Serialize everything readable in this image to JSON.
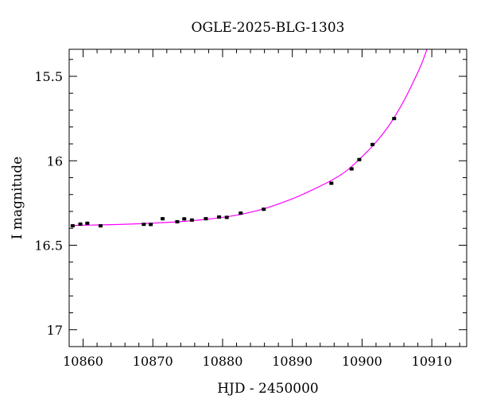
{
  "chart_data": {
    "type": "scatter",
    "title": "OGLE-2025-BLG-1303",
    "xlabel": "HJD - 2450000",
    "ylabel": "I magnitude",
    "xlim": [
      10858,
      10915
    ],
    "ylim": [
      17.1,
      15.34
    ],
    "y_inverted": true,
    "grid": false,
    "xticks_major": [
      10860,
      10870,
      10880,
      10890,
      10900,
      10910
    ],
    "xticks_major_labels": [
      "10860",
      "10870",
      "10880",
      "10890",
      "10900",
      "10910"
    ],
    "xticks_minor_step": 2,
    "yticks_major": [
      15.5,
      16,
      16.5,
      17
    ],
    "yticks_major_labels": [
      "15.5",
      "16",
      "16.5",
      "17"
    ],
    "yticks_minor_step": 0.1,
    "series": [
      {
        "kind": "points",
        "color": "#000000",
        "points": [
          {
            "x": 10858.5,
            "y": 16.385,
            "err": 0.01
          },
          {
            "x": 10859.6,
            "y": 16.375,
            "err": 0.01
          },
          {
            "x": 10860.6,
            "y": 16.37,
            "err": 0.01
          },
          {
            "x": 10862.5,
            "y": 16.385,
            "err": 0.01
          },
          {
            "x": 10868.7,
            "y": 16.376,
            "err": 0.01
          },
          {
            "x": 10869.7,
            "y": 16.377,
            "err": 0.01
          },
          {
            "x": 10871.4,
            "y": 16.343,
            "err": 0.01
          },
          {
            "x": 10873.5,
            "y": 16.361,
            "err": 0.01
          },
          {
            "x": 10874.5,
            "y": 16.344,
            "err": 0.01
          },
          {
            "x": 10875.6,
            "y": 16.351,
            "err": 0.01
          },
          {
            "x": 10877.6,
            "y": 16.343,
            "err": 0.01
          },
          {
            "x": 10879.5,
            "y": 16.333,
            "err": 0.01
          },
          {
            "x": 10880.6,
            "y": 16.335,
            "err": 0.01
          },
          {
            "x": 10882.6,
            "y": 16.31,
            "err": 0.01
          },
          {
            "x": 10885.9,
            "y": 16.287,
            "err": 0.01
          },
          {
            "x": 10895.6,
            "y": 16.133,
            "err": 0.01
          },
          {
            "x": 10898.5,
            "y": 16.048,
            "err": 0.01
          },
          {
            "x": 10899.6,
            "y": 15.993,
            "err": 0.01
          },
          {
            "x": 10901.5,
            "y": 15.904,
            "err": 0.01
          },
          {
            "x": 10904.6,
            "y": 15.75,
            "err": 0.01
          }
        ]
      },
      {
        "kind": "model-curve",
        "color": "#ff00ff",
        "points": [
          {
            "x": 10858.5,
            "y": 16.383
          },
          {
            "x": 10862,
            "y": 16.38
          },
          {
            "x": 10866,
            "y": 16.376
          },
          {
            "x": 10870,
            "y": 16.369
          },
          {
            "x": 10874,
            "y": 16.36
          },
          {
            "x": 10878,
            "y": 16.345
          },
          {
            "x": 10882,
            "y": 16.322
          },
          {
            "x": 10886,
            "y": 16.283
          },
          {
            "x": 10890,
            "y": 16.225
          },
          {
            "x": 10893,
            "y": 16.17
          },
          {
            "x": 10896,
            "y": 16.107
          },
          {
            "x": 10898,
            "y": 16.052
          },
          {
            "x": 10900,
            "y": 15.976
          },
          {
            "x": 10902,
            "y": 15.89
          },
          {
            "x": 10904,
            "y": 15.783
          },
          {
            "x": 10906,
            "y": 15.645
          },
          {
            "x": 10907.5,
            "y": 15.52
          },
          {
            "x": 10908.5,
            "y": 15.43
          },
          {
            "x": 10909.3,
            "y": 15.34
          }
        ]
      }
    ]
  }
}
